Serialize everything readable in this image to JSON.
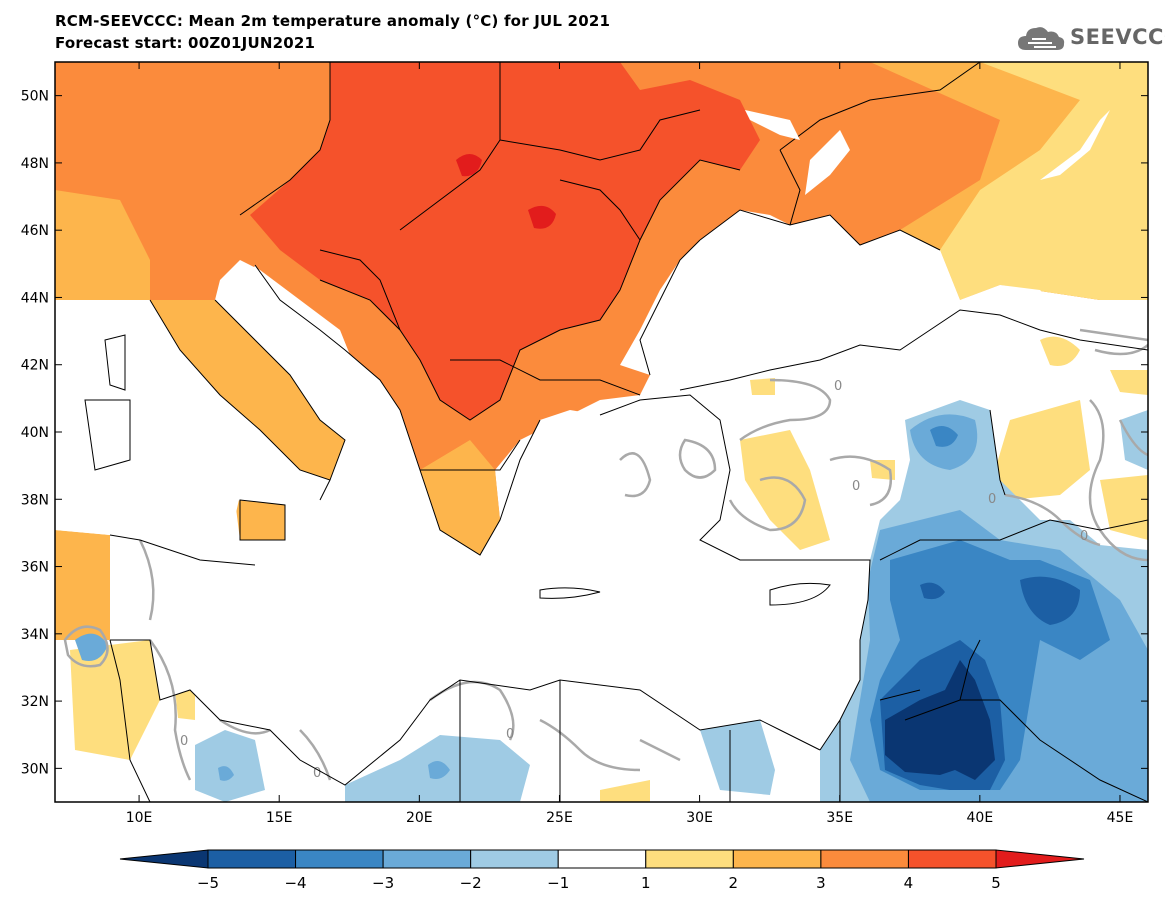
{
  "header": {
    "title_line1": "RCM-SEEVCCC: Mean 2m temperature anomaly (°C) for JUL 2021",
    "title_line2": "Forecast start: 00Z01JUN2021",
    "logo_text": "SEEVCCC",
    "logo_icon": "cloud-icon"
  },
  "map": {
    "lon_range": [
      7,
      46
    ],
    "lat_range": [
      29,
      51
    ],
    "lat_labels": [
      "30N",
      "32N",
      "34N",
      "36N",
      "38N",
      "40N",
      "42N",
      "44N",
      "46N",
      "48N",
      "50N"
    ],
    "lat_values": [
      30,
      32,
      34,
      36,
      38,
      40,
      42,
      44,
      46,
      48,
      50
    ],
    "lon_labels": [
      "10E",
      "15E",
      "20E",
      "25E",
      "30E",
      "35E",
      "40E",
      "45E"
    ],
    "lon_values": [
      10,
      15,
      20,
      25,
      30,
      35,
      40,
      45
    ],
    "contour_label": "0",
    "colors": {
      "sea": "#ffffff",
      "pos1": "#fede7e",
      "pos2": "#fdb54c",
      "pos3": "#fb8b3c",
      "pos4": "#f5522b",
      "pos5": "#e21c1c",
      "neg1": "#9fcbe4",
      "neg2": "#6aaad8",
      "neg3": "#3a86c4",
      "neg4": "#1c5fa4",
      "neg5": "#0a3672",
      "contour": "#a9a9a9"
    }
  },
  "colorbar": {
    "ticks": [
      "−5",
      "−4",
      "−3",
      "−2",
      "−1",
      "1",
      "2",
      "3",
      "4",
      "5"
    ],
    "colors": [
      "#1c5fa4",
      "#3a86c4",
      "#6aaad8",
      "#9fcbe4",
      "#ffffff",
      "#fede7e",
      "#fdb54c",
      "#fb8b3c",
      "#f5522b"
    ],
    "extend_low": "#0a3672",
    "extend_high": "#e21c1c"
  }
}
